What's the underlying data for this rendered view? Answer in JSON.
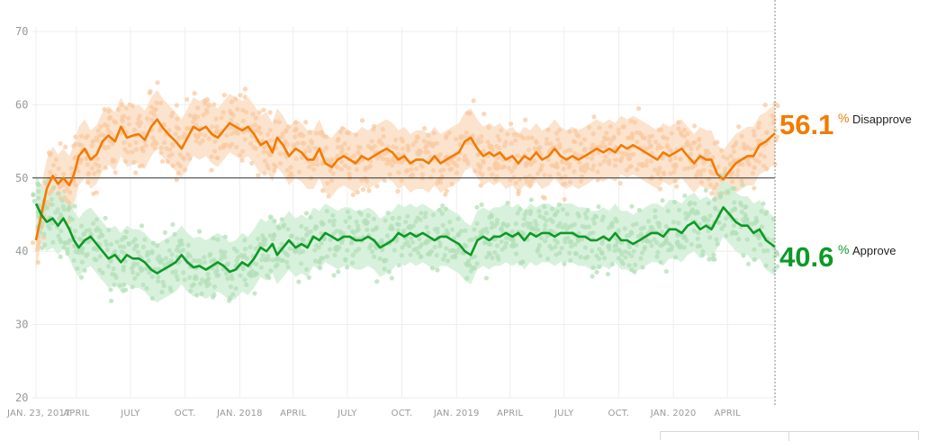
{
  "chart_data": {
    "type": "line",
    "title": "",
    "xlabel": "",
    "ylabel": "",
    "ylim": [
      20,
      70
    ],
    "yticks": [
      20,
      30,
      40,
      50,
      60,
      70
    ],
    "reference_line": 50,
    "xlim": [
      "2017-01-23",
      "2020-06-20"
    ],
    "xticks": [
      {
        "date": "2017-01-23",
        "label": "JAN. 23, 2017"
      },
      {
        "date": "2017-04-01",
        "label": "APRIL"
      },
      {
        "date": "2017-07-01",
        "label": "JULY"
      },
      {
        "date": "2017-10-01",
        "label": "OCT."
      },
      {
        "date": "2018-01-01",
        "label": "JAN. 2018"
      },
      {
        "date": "2018-04-01",
        "label": "APRIL"
      },
      {
        "date": "2018-07-01",
        "label": "JULY"
      },
      {
        "date": "2018-10-01",
        "label": "OCT."
      },
      {
        "date": "2019-01-01",
        "label": "JAN. 2019"
      },
      {
        "date": "2019-04-01",
        "label": "APRIL"
      },
      {
        "date": "2019-07-01",
        "label": "JULY"
      },
      {
        "date": "2019-10-01",
        "label": "OCT."
      },
      {
        "date": "2020-01-01",
        "label": "JAN. 2020"
      },
      {
        "date": "2020-04-01",
        "label": "APRIL"
      }
    ],
    "series": [
      {
        "name": "Disapprove",
        "color": "#f47a00",
        "dot_color": "#f9c9a0",
        "band_color": "#fbe0c8",
        "current_value": "56.1",
        "points": [
          [
            "2017-01-23",
            41.5
          ],
          [
            "2017-02-01",
            45.0
          ],
          [
            "2017-02-10",
            48.5
          ],
          [
            "2017-02-20",
            50.3
          ],
          [
            "2017-03-01",
            49.2
          ],
          [
            "2017-03-10",
            50.0
          ],
          [
            "2017-03-20",
            49.0
          ],
          [
            "2017-03-28",
            50.5
          ],
          [
            "2017-04-05",
            53.0
          ],
          [
            "2017-04-15",
            54.0
          ],
          [
            "2017-04-25",
            52.5
          ],
          [
            "2017-05-05",
            53.2
          ],
          [
            "2017-05-15",
            55.0
          ],
          [
            "2017-05-25",
            55.8
          ],
          [
            "2017-06-05",
            55.0
          ],
          [
            "2017-06-15",
            57.0
          ],
          [
            "2017-06-25",
            55.5
          ],
          [
            "2017-07-05",
            55.8
          ],
          [
            "2017-07-15",
            56.0
          ],
          [
            "2017-07-25",
            55.2
          ],
          [
            "2017-08-05",
            57.0
          ],
          [
            "2017-08-15",
            58.0
          ],
          [
            "2017-08-25",
            56.8
          ],
          [
            "2017-09-05",
            55.8
          ],
          [
            "2017-09-15",
            55.0
          ],
          [
            "2017-09-25",
            54.0
          ],
          [
            "2017-10-05",
            55.5
          ],
          [
            "2017-10-15",
            57.0
          ],
          [
            "2017-10-25",
            56.5
          ],
          [
            "2017-11-05",
            57.0
          ],
          [
            "2017-11-15",
            56.0
          ],
          [
            "2017-11-25",
            55.5
          ],
          [
            "2017-12-05",
            56.5
          ],
          [
            "2017-12-15",
            57.5
          ],
          [
            "2017-12-25",
            57.0
          ],
          [
            "2018-01-05",
            56.5
          ],
          [
            "2018-01-15",
            57.0
          ],
          [
            "2018-01-25",
            56.0
          ],
          [
            "2018-02-05",
            54.5
          ],
          [
            "2018-02-15",
            55.0
          ],
          [
            "2018-02-25",
            53.5
          ],
          [
            "2018-03-05",
            55.5
          ],
          [
            "2018-03-15",
            54.5
          ],
          [
            "2018-03-25",
            53.0
          ],
          [
            "2018-04-05",
            54.0
          ],
          [
            "2018-04-15",
            53.5
          ],
          [
            "2018-04-25",
            52.5
          ],
          [
            "2018-05-05",
            52.5
          ],
          [
            "2018-05-15",
            54.0
          ],
          [
            "2018-05-25",
            52.0
          ],
          [
            "2018-06-05",
            51.5
          ],
          [
            "2018-06-15",
            52.5
          ],
          [
            "2018-06-25",
            53.0
          ],
          [
            "2018-07-05",
            52.5
          ],
          [
            "2018-07-15",
            52.0
          ],
          [
            "2018-07-25",
            53.0
          ],
          [
            "2018-08-05",
            52.5
          ],
          [
            "2018-08-15",
            53.0
          ],
          [
            "2018-08-25",
            53.5
          ],
          [
            "2018-09-05",
            54.0
          ],
          [
            "2018-09-15",
            53.5
          ],
          [
            "2018-09-25",
            52.5
          ],
          [
            "2018-10-05",
            53.0
          ],
          [
            "2018-10-15",
            52.0
          ],
          [
            "2018-10-25",
            52.5
          ],
          [
            "2018-11-05",
            52.5
          ],
          [
            "2018-11-15",
            52.0
          ],
          [
            "2018-11-25",
            53.0
          ],
          [
            "2018-12-05",
            52.0
          ],
          [
            "2018-12-15",
            52.5
          ],
          [
            "2018-12-25",
            53.0
          ],
          [
            "2019-01-05",
            53.5
          ],
          [
            "2019-01-15",
            55.0
          ],
          [
            "2019-01-25",
            55.5
          ],
          [
            "2019-02-05",
            54.0
          ],
          [
            "2019-02-15",
            53.0
          ],
          [
            "2019-02-25",
            53.5
          ],
          [
            "2019-03-05",
            53.0
          ],
          [
            "2019-03-15",
            53.5
          ],
          [
            "2019-03-25",
            52.5
          ],
          [
            "2019-04-05",
            53.0
          ],
          [
            "2019-04-15",
            52.0
          ],
          [
            "2019-04-25",
            53.0
          ],
          [
            "2019-05-05",
            52.5
          ],
          [
            "2019-05-15",
            53.5
          ],
          [
            "2019-05-25",
            52.5
          ],
          [
            "2019-06-05",
            53.0
          ],
          [
            "2019-06-15",
            54.0
          ],
          [
            "2019-06-25",
            53.0
          ],
          [
            "2019-07-05",
            52.5
          ],
          [
            "2019-07-15",
            53.0
          ],
          [
            "2019-07-25",
            52.5
          ],
          [
            "2019-08-05",
            53.0
          ],
          [
            "2019-08-15",
            53.5
          ],
          [
            "2019-08-25",
            54.0
          ],
          [
            "2019-09-05",
            53.5
          ],
          [
            "2019-09-15",
            54.0
          ],
          [
            "2019-09-25",
            53.5
          ],
          [
            "2019-10-05",
            54.5
          ],
          [
            "2019-10-15",
            54.0
          ],
          [
            "2019-10-25",
            54.5
          ],
          [
            "2019-11-05",
            54.0
          ],
          [
            "2019-11-15",
            53.5
          ],
          [
            "2019-11-25",
            53.0
          ],
          [
            "2019-12-05",
            52.5
          ],
          [
            "2019-12-15",
            53.5
          ],
          [
            "2019-12-25",
            53.0
          ],
          [
            "2020-01-05",
            53.5
          ],
          [
            "2020-01-15",
            54.0
          ],
          [
            "2020-01-25",
            53.0
          ],
          [
            "2020-02-05",
            52.0
          ],
          [
            "2020-02-15",
            53.0
          ],
          [
            "2020-02-25",
            52.5
          ],
          [
            "2020-03-05",
            52.5
          ],
          [
            "2020-03-15",
            50.5
          ],
          [
            "2020-03-25",
            49.8
          ],
          [
            "2020-04-05",
            51.0
          ],
          [
            "2020-04-15",
            52.0
          ],
          [
            "2020-04-25",
            52.5
          ],
          [
            "2020-05-05",
            53.0
          ],
          [
            "2020-05-15",
            53.0
          ],
          [
            "2020-05-25",
            54.5
          ],
          [
            "2020-06-05",
            55.0
          ],
          [
            "2020-06-20",
            56.1
          ]
        ]
      },
      {
        "name": "Approve",
        "color": "#0c9a26",
        "dot_color": "#b3dfb8",
        "band_color": "#d4efd8",
        "current_value": "40.6",
        "points": [
          [
            "2017-01-23",
            46.5
          ],
          [
            "2017-02-01",
            45.0
          ],
          [
            "2017-02-10",
            44.0
          ],
          [
            "2017-02-20",
            44.5
          ],
          [
            "2017-03-01",
            43.5
          ],
          [
            "2017-03-10",
            44.5
          ],
          [
            "2017-03-20",
            43.0
          ],
          [
            "2017-03-28",
            41.5
          ],
          [
            "2017-04-05",
            40.5
          ],
          [
            "2017-04-15",
            41.5
          ],
          [
            "2017-04-25",
            42.0
          ],
          [
            "2017-05-05",
            41.0
          ],
          [
            "2017-05-15",
            40.0
          ],
          [
            "2017-05-25",
            39.0
          ],
          [
            "2017-06-05",
            39.5
          ],
          [
            "2017-06-15",
            38.5
          ],
          [
            "2017-06-25",
            39.5
          ],
          [
            "2017-07-05",
            39.0
          ],
          [
            "2017-07-15",
            39.0
          ],
          [
            "2017-07-25",
            38.5
          ],
          [
            "2017-08-05",
            37.5
          ],
          [
            "2017-08-15",
            37.0
          ],
          [
            "2017-08-25",
            37.5
          ],
          [
            "2017-09-05",
            38.0
          ],
          [
            "2017-09-15",
            38.5
          ],
          [
            "2017-09-25",
            39.5
          ],
          [
            "2017-10-05",
            38.5
          ],
          [
            "2017-10-15",
            37.8
          ],
          [
            "2017-10-25",
            38.0
          ],
          [
            "2017-11-05",
            37.5
          ],
          [
            "2017-11-15",
            38.0
          ],
          [
            "2017-11-25",
            38.5
          ],
          [
            "2017-12-05",
            38.0
          ],
          [
            "2017-12-15",
            37.2
          ],
          [
            "2017-12-25",
            37.5
          ],
          [
            "2018-01-05",
            38.5
          ],
          [
            "2018-01-15",
            38.0
          ],
          [
            "2018-01-25",
            39.0
          ],
          [
            "2018-02-05",
            40.5
          ],
          [
            "2018-02-15",
            40.0
          ],
          [
            "2018-02-25",
            41.0
          ],
          [
            "2018-03-05",
            39.5
          ],
          [
            "2018-03-15",
            40.5
          ],
          [
            "2018-03-25",
            41.5
          ],
          [
            "2018-04-05",
            40.5
          ],
          [
            "2018-04-15",
            41.0
          ],
          [
            "2018-04-25",
            40.5
          ],
          [
            "2018-05-05",
            42.0
          ],
          [
            "2018-05-15",
            41.5
          ],
          [
            "2018-05-25",
            42.5
          ],
          [
            "2018-06-05",
            42.0
          ],
          [
            "2018-06-15",
            41.5
          ],
          [
            "2018-06-25",
            42.0
          ],
          [
            "2018-07-05",
            42.0
          ],
          [
            "2018-07-15",
            41.5
          ],
          [
            "2018-07-25",
            41.5
          ],
          [
            "2018-08-05",
            42.0
          ],
          [
            "2018-08-15",
            41.5
          ],
          [
            "2018-08-25",
            40.5
          ],
          [
            "2018-09-05",
            41.0
          ],
          [
            "2018-09-15",
            41.5
          ],
          [
            "2018-09-25",
            42.5
          ],
          [
            "2018-10-05",
            42.0
          ],
          [
            "2018-10-15",
            42.5
          ],
          [
            "2018-10-25",
            42.0
          ],
          [
            "2018-11-05",
            42.5
          ],
          [
            "2018-11-15",
            42.0
          ],
          [
            "2018-11-25",
            41.5
          ],
          [
            "2018-12-05",
            42.0
          ],
          [
            "2018-12-15",
            42.0
          ],
          [
            "2018-12-25",
            41.5
          ],
          [
            "2019-01-05",
            41.0
          ],
          [
            "2019-01-15",
            40.0
          ],
          [
            "2019-01-25",
            39.5
          ],
          [
            "2019-02-05",
            41.5
          ],
          [
            "2019-02-15",
            42.0
          ],
          [
            "2019-02-25",
            41.5
          ],
          [
            "2019-03-05",
            42.0
          ],
          [
            "2019-03-15",
            42.0
          ],
          [
            "2019-03-25",
            42.5
          ],
          [
            "2019-04-05",
            42.0
          ],
          [
            "2019-04-15",
            42.5
          ],
          [
            "2019-04-25",
            41.5
          ],
          [
            "2019-05-05",
            42.5
          ],
          [
            "2019-05-15",
            42.0
          ],
          [
            "2019-05-25",
            42.5
          ],
          [
            "2019-06-05",
            42.5
          ],
          [
            "2019-06-15",
            42.0
          ],
          [
            "2019-06-25",
            42.5
          ],
          [
            "2019-07-05",
            42.5
          ],
          [
            "2019-07-15",
            42.5
          ],
          [
            "2019-07-25",
            42.0
          ],
          [
            "2019-08-05",
            42.0
          ],
          [
            "2019-08-15",
            41.5
          ],
          [
            "2019-08-25",
            41.5
          ],
          [
            "2019-09-05",
            42.0
          ],
          [
            "2019-09-15",
            41.5
          ],
          [
            "2019-09-25",
            42.5
          ],
          [
            "2019-10-05",
            41.5
          ],
          [
            "2019-10-15",
            41.5
          ],
          [
            "2019-10-25",
            41.0
          ],
          [
            "2019-11-05",
            41.5
          ],
          [
            "2019-11-15",
            42.0
          ],
          [
            "2019-11-25",
            42.5
          ],
          [
            "2019-12-05",
            42.5
          ],
          [
            "2019-12-15",
            42.0
          ],
          [
            "2019-12-25",
            43.0
          ],
          [
            "2020-01-05",
            43.0
          ],
          [
            "2020-01-15",
            42.5
          ],
          [
            "2020-01-25",
            43.5
          ],
          [
            "2020-02-05",
            44.0
          ],
          [
            "2020-02-15",
            43.0
          ],
          [
            "2020-02-25",
            43.5
          ],
          [
            "2020-03-05",
            43.0
          ],
          [
            "2020-03-15",
            44.5
          ],
          [
            "2020-03-25",
            46.0
          ],
          [
            "2020-04-05",
            45.0
          ],
          [
            "2020-04-15",
            44.0
          ],
          [
            "2020-04-25",
            43.5
          ],
          [
            "2020-05-05",
            43.5
          ],
          [
            "2020-05-15",
            42.5
          ],
          [
            "2020-05-25",
            43.0
          ],
          [
            "2020-06-05",
            41.5
          ],
          [
            "2020-06-20",
            40.6
          ]
        ]
      }
    ]
  },
  "labels": {
    "disapprove_value": "56.1",
    "disapprove_pct": "%",
    "disapprove_name": "Disapprove",
    "approve_value": "40.6",
    "approve_pct": "%",
    "approve_name": "Approve"
  }
}
